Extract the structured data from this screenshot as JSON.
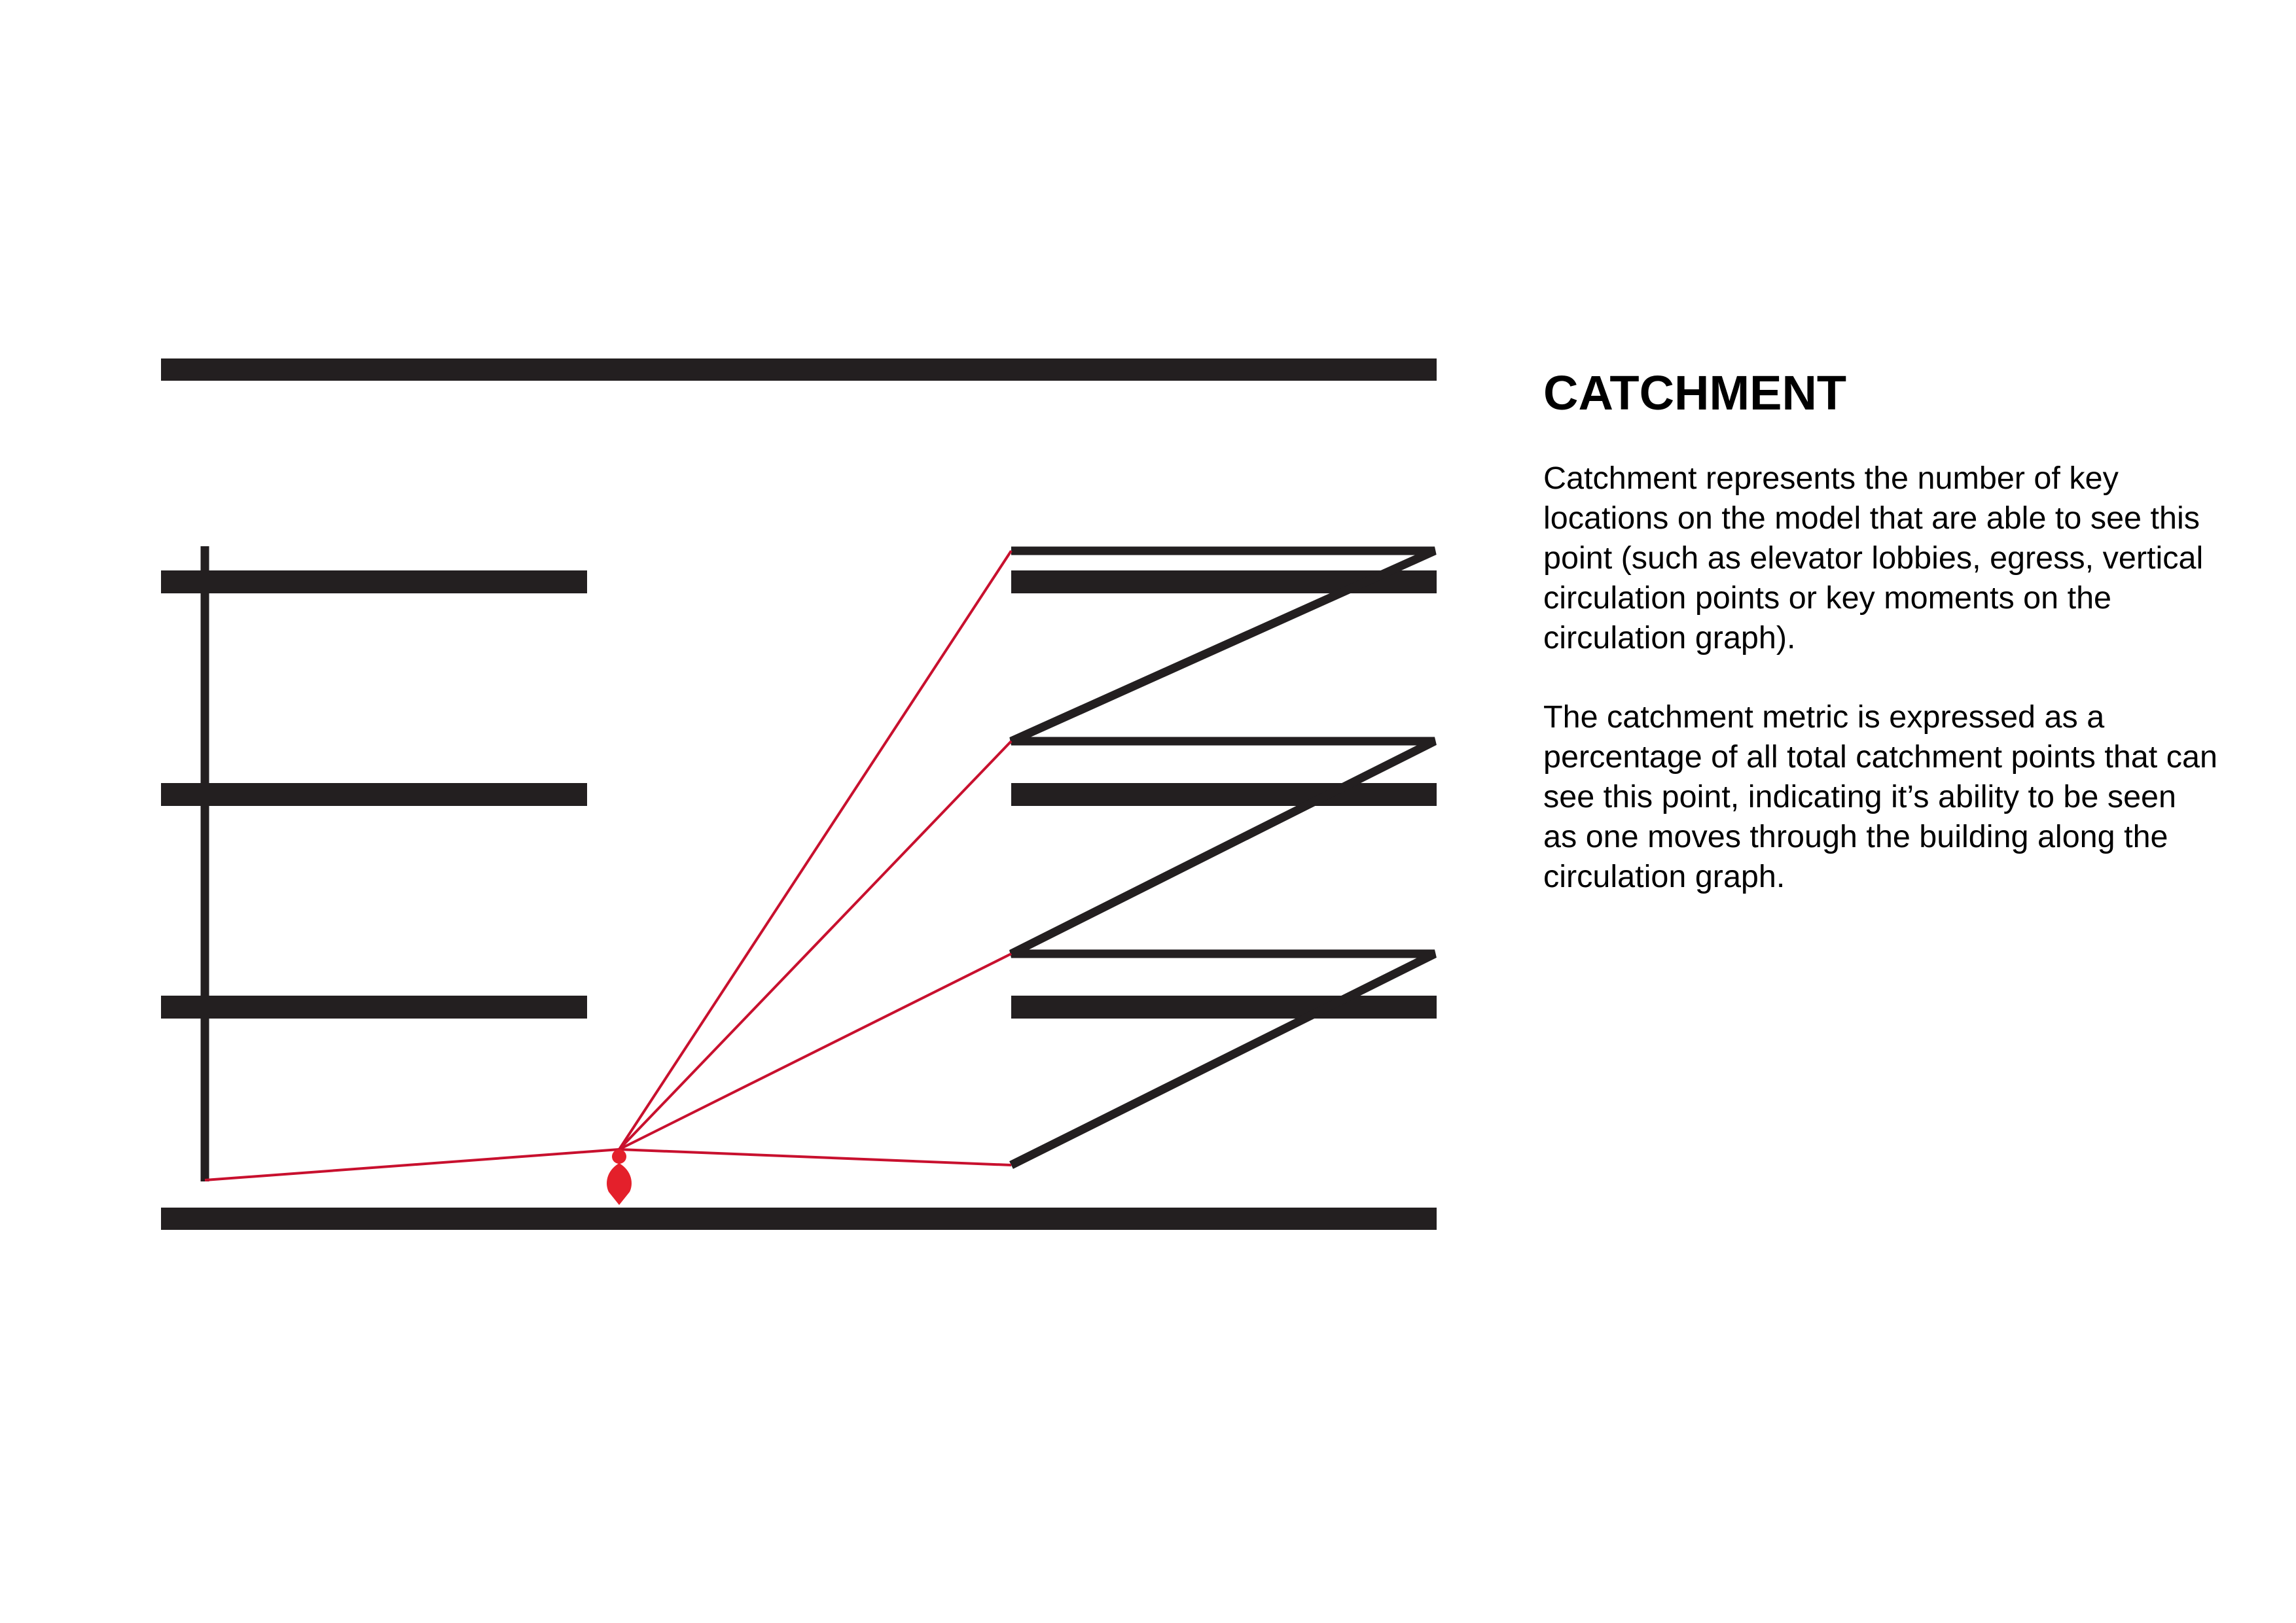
{
  "heading": "CATCHMENT",
  "paragraph_1": "Catchment represents the number of key locations on the model that are able to see this point (such as elevator lobbies, egress, vertical circulation points or key moments on the circulation graph).",
  "paragraph_2": "The catchment metric is expressed as a percentage of all total catchment points that can see this point, indicating it’s ability to be seen as one moves through the building along the circulation graph.",
  "colors": {
    "structure": "#231f20",
    "sightline": "#c8102e",
    "viewer": "#e4202b",
    "background": "#ffffff"
  },
  "icons": {
    "viewer": "person-marker-icon"
  }
}
